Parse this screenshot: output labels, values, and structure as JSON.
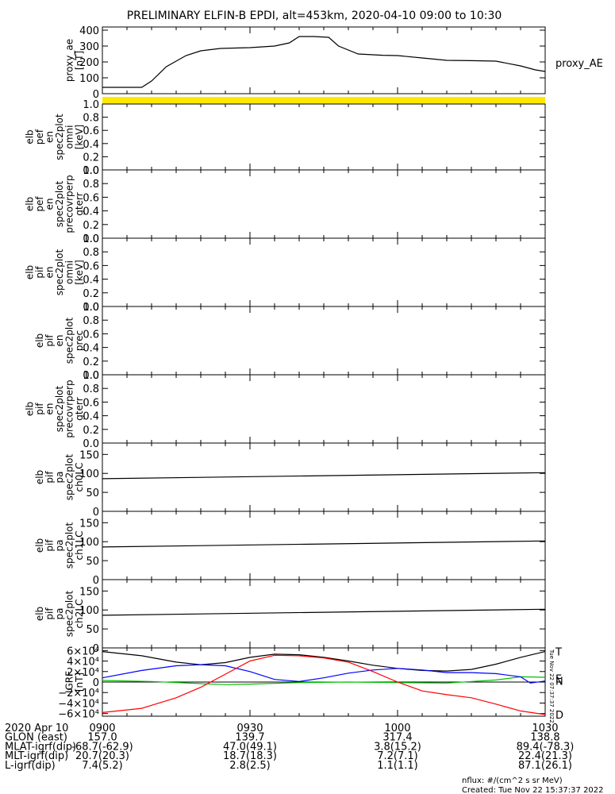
{
  "title": "PRELIMINARY ELFIN-B EPDI, alt=453km, 2020-04-10 09:00 to 10:30",
  "colors": {
    "axis": "#000000",
    "flag": "#ffe800",
    "black": "#000000",
    "blue": "#0000ff",
    "green": "#00c000",
    "red": "#ff0000"
  },
  "chart_data": [
    {
      "type": "line",
      "name": "proxy_ae",
      "ylabel": [
        "proxy_ae",
        "[nT]"
      ],
      "ylim": [
        0,
        420
      ],
      "yticks": [
        "400",
        "300",
        "200",
        "100",
        "0"
      ],
      "ytick_values": [
        400,
        300,
        200,
        100,
        0
      ],
      "legend": "proxy_AE",
      "series": [
        {
          "name": "proxy_AE",
          "color": "#000000",
          "x": [
            0,
            5,
            8,
            10,
            13,
            17,
            20,
            24,
            30,
            35,
            38,
            40,
            43,
            46,
            48,
            52,
            57,
            60,
            65,
            70,
            75,
            80,
            85,
            88,
            90
          ],
          "y": [
            40,
            40,
            40,
            80,
            170,
            240,
            270,
            285,
            290,
            300,
            320,
            360,
            360,
            355,
            300,
            250,
            242,
            240,
            225,
            210,
            208,
            205,
            175,
            150,
            140
          ]
        }
      ]
    },
    {
      "type": "line",
      "name": "flag-bar",
      "color": "#ffe800"
    },
    {
      "type": "line",
      "name": "elb-pef-en-spec2plot-omni",
      "ylabel": [
        "elb",
        "pef",
        "en",
        "spec2plot",
        "omni",
        "[keV]"
      ],
      "ylim": [
        0,
        1
      ],
      "yticks": [
        "1.0",
        "0.8",
        "0.6",
        "0.4",
        "0.2",
        "0.0"
      ],
      "ytick_values": [
        1,
        0.8,
        0.6,
        0.4,
        0.2,
        0
      ]
    },
    {
      "type": "line",
      "name": "elb-pef-en-spec2plot-precovrperp-gterr",
      "ylabel": [
        "elb",
        "pef",
        "en",
        "spec2plot",
        "precovrperp",
        "gterr"
      ],
      "ylim": [
        0,
        1
      ],
      "yticks": [
        "1.0",
        "0.8",
        "0.6",
        "0.4",
        "0.2",
        "0.0"
      ],
      "ytick_values": [
        1,
        0.8,
        0.6,
        0.4,
        0.2,
        0
      ]
    },
    {
      "type": "line",
      "name": "elb-pif-en-spec2plot-omni",
      "ylabel": [
        "elb",
        "pif",
        "en",
        "spec2plot",
        "omni",
        "[keV]"
      ],
      "ylim": [
        0,
        1
      ],
      "yticks": [
        "1.0",
        "0.8",
        "0.6",
        "0.4",
        "0.2",
        "0.0"
      ],
      "ytick_values": [
        1,
        0.8,
        0.6,
        0.4,
        0.2,
        0
      ]
    },
    {
      "type": "line",
      "name": "elb-pif-en-spec2plot-prec",
      "ylabel": [
        "elb",
        "pif",
        "en",
        "spec2plot",
        "prec"
      ],
      "ylim": [
        0,
        1
      ],
      "yticks": [
        "1.0",
        "0.8",
        "0.6",
        "0.4",
        "0.2",
        "0.0"
      ],
      "ytick_values": [
        1,
        0.8,
        0.6,
        0.4,
        0.2,
        0
      ]
    },
    {
      "type": "line",
      "name": "elb-pif-en-spec2plot-precovrperp-gterr",
      "ylabel": [
        "elb",
        "pif",
        "en",
        "spec2plot",
        "precovrperp",
        "gterr"
      ],
      "ylim": [
        0,
        1
      ],
      "yticks": [
        "1.0",
        "0.8",
        "0.6",
        "0.4",
        "0.2",
        "0.0"
      ],
      "ytick_values": [
        1,
        0.8,
        0.6,
        0.4,
        0.2,
        0
      ]
    },
    {
      "type": "line",
      "name": "elb-pif-pa-spec2plot-ch0LC",
      "ylabel": [
        "elb",
        "pif",
        "pa",
        "spec2plot",
        "ch0LC"
      ],
      "ylim": [
        0,
        180
      ],
      "yticks": [
        "150",
        "100",
        "50",
        "0"
      ],
      "ytick_values": [
        150,
        100,
        50,
        0
      ],
      "series": [
        {
          "name": "lc",
          "color": "#000000",
          "x": [
            0,
            90
          ],
          "y": [
            86,
            102
          ]
        }
      ]
    },
    {
      "type": "line",
      "name": "elb-pif-pa-spec2plot-ch1LC",
      "ylabel": [
        "elb",
        "pif",
        "pa",
        "spec2plot",
        "ch1LC"
      ],
      "ylim": [
        0,
        180
      ],
      "yticks": [
        "150",
        "100",
        "50",
        "0"
      ],
      "ytick_values": [
        150,
        100,
        50,
        0
      ],
      "series": [
        {
          "name": "lc",
          "color": "#000000",
          "x": [
            0,
            90
          ],
          "y": [
            86,
            102
          ]
        }
      ]
    },
    {
      "type": "line",
      "name": "elb-pif-pa-spec2plot-ch2LC",
      "ylabel": [
        "elb",
        "pif",
        "pa",
        "spec2plot",
        "ch2LC"
      ],
      "ylim": [
        0,
        180
      ],
      "yticks": [
        "150",
        "100",
        "50",
        "0"
      ],
      "ytick_values": [
        150,
        100,
        50,
        0
      ],
      "series": [
        {
          "name": "lc",
          "color": "#000000",
          "x": [
            0,
            90
          ],
          "y": [
            86,
            102
          ]
        }
      ]
    },
    {
      "type": "line",
      "name": "igrf",
      "ylabel": [
        "IGRF",
        "[nT]"
      ],
      "ylim": [
        -65000,
        65000
      ],
      "yticks": [
        "6×10⁴",
        "4×10⁴",
        "2×10⁴",
        "0",
        "−2×10⁴",
        "−4×10⁴",
        "−6×10⁴"
      ],
      "ytick_values": [
        60000,
        40000,
        20000,
        0,
        -20000,
        -40000,
        -60000
      ],
      "zero_line": true,
      "side_text": "Tue Nov 22 07:37:37 2022",
      "series": [
        {
          "name": "T",
          "color": "#000000",
          "x": [
            0,
            8,
            15,
            20,
            25,
            30,
            35,
            40,
            45,
            50,
            55,
            60,
            65,
            70,
            75,
            80,
            85,
            90
          ],
          "y": [
            58000,
            50000,
            38000,
            33000,
            37000,
            47000,
            53000,
            52000,
            47000,
            40000,
            32000,
            26000,
            22000,
            21000,
            24000,
            34000,
            47000,
            58000
          ]
        },
        {
          "name": "E",
          "color": "#00c000",
          "x": [
            0,
            10,
            20,
            25,
            30,
            40,
            50,
            60,
            70,
            80,
            85,
            90
          ],
          "y": [
            3000,
            1000,
            -3000,
            -5000,
            -4000,
            -1000,
            0,
            -1000,
            -2000,
            4000,
            10000,
            9000
          ]
        },
        {
          "name": "N",
          "color": "#0000ff",
          "x": [
            0,
            8,
            15,
            20,
            25,
            30,
            35,
            40,
            45,
            50,
            55,
            60,
            65,
            70,
            75,
            80,
            85,
            87,
            90
          ],
          "y": [
            8000,
            22000,
            31000,
            33000,
            31000,
            20000,
            5000,
            1000,
            8000,
            17000,
            23000,
            26000,
            23000,
            18000,
            18000,
            16000,
            10000,
            -2000,
            2000
          ]
        },
        {
          "name": "D",
          "color": "#ff0000",
          "x": [
            0,
            8,
            15,
            20,
            25,
            30,
            35,
            40,
            45,
            50,
            55,
            60,
            65,
            70,
            75,
            80,
            85,
            90
          ],
          "y": [
            -58000,
            -50000,
            -30000,
            -10000,
            15000,
            40000,
            51000,
            50000,
            46000,
            38000,
            20000,
            0,
            -17000,
            -24000,
            -30000,
            -42000,
            -55000,
            -62000
          ]
        }
      ],
      "labels": [
        {
          "text": "T",
          "color": "#000000",
          "y": 58000
        },
        {
          "text": "E",
          "color": "#00c000",
          "y": 7000
        },
        {
          "text": "N",
          "color": "#0000ff",
          "y": 2000
        },
        {
          "text": "D",
          "color": "#ff0000",
          "y": -62000
        }
      ]
    }
  ],
  "xaxis": {
    "xlim": [
      0,
      90
    ],
    "tick_values": [
      0,
      30,
      60,
      90
    ],
    "minor_step": 5
  },
  "annotation": {
    "rows": [
      {
        "label": "2020 Apr 10",
        "values": [
          "0900",
          "0930",
          "1000",
          "1030"
        ]
      },
      {
        "label": "GLON (east)",
        "values": [
          "157.0",
          "139.7",
          "317.4",
          "138.8"
        ]
      },
      {
        "label": "MLAT-igrf(dip)",
        "values": [
          "-68.7(-62.9)",
          "47.0(49.1)",
          "3.8(15.2)",
          "89.4(-78.3)"
        ]
      },
      {
        "label": "MLT-igrf(dip)",
        "values": [
          "20.7(20.3)",
          "18.7(18.3)",
          "7.2(7.1)",
          "22.4(21.3)"
        ]
      },
      {
        "label": "L-igrf(dip)",
        "values": [
          "7.4(5.2)",
          "2.8(2.5)",
          "1.1(1.1)",
          "87.1(26.1)"
        ]
      }
    ]
  },
  "footer": {
    "units": "nflux: #/(cm^2 s sr MeV)",
    "created": "Created: Tue Nov 22 15:37:37 2022"
  }
}
